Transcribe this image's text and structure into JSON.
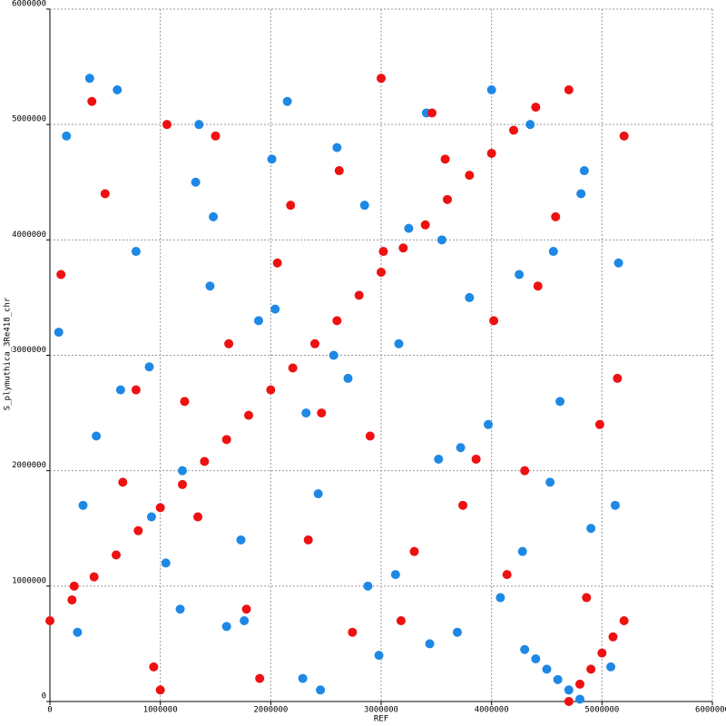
{
  "chart_data": {
    "type": "scatter",
    "xlabel": "REF",
    "ylabel": "S_plymuthica_3Re418_chr",
    "xlim": [
      0,
      6000000
    ],
    "ylim": [
      0,
      6000000
    ],
    "xticks": [
      0,
      1000000,
      2000000,
      3000000,
      4000000,
      5000000,
      6000000
    ],
    "yticks": [
      0,
      1000000,
      2000000,
      3000000,
      4000000,
      5000000,
      6000000
    ],
    "grid": true,
    "series": [
      {
        "color": "#1e88e5",
        "x": [
          4300000,
          4400000,
          4500000,
          4600000,
          4700000,
          4800000,
          150000,
          420000,
          780000,
          1050000,
          1320000,
          1600000,
          1890000,
          2150000,
          2430000,
          2700000,
          2980000,
          3250000,
          3520000,
          3800000,
          4080000,
          4350000,
          4620000,
          4900000,
          5150000,
          300000,
          610000,
          900000,
          1180000,
          1450000,
          1730000,
          2010000,
          2290000,
          2570000,
          2850000,
          3130000,
          3410000,
          3690000,
          3970000,
          4250000,
          4530000,
          4810000,
          5080000,
          80000,
          360000,
          640000,
          920000,
          1200000,
          1480000,
          1760000,
          2040000,
          2320000,
          2600000,
          2880000,
          3160000,
          3440000,
          3720000,
          4000000,
          4280000,
          4560000,
          4840000,
          5120000,
          250000,
          1350000,
          2450000,
          3550000
        ],
        "values": [
          450000,
          370000,
          280000,
          190000,
          100000,
          20000,
          4900000,
          2300000,
          3900000,
          1200000,
          4500000,
          650000,
          3300000,
          5200000,
          1800000,
          2800000,
          400000,
          4100000,
          2100000,
          3500000,
          900000,
          5000000,
          2600000,
          1500000,
          3800000,
          1700000,
          5300000,
          2900000,
          800000,
          3600000,
          1400000,
          4700000,
          200000,
          3000000,
          4300000,
          1100000,
          5100000,
          600000,
          2400000,
          3700000,
          1900000,
          4400000,
          300000,
          3200000,
          5400000,
          2700000,
          1600000,
          2000000,
          4200000,
          700000,
          3400000,
          2500000,
          4800000,
          1000000,
          3100000,
          500000,
          2200000,
          5300000,
          1300000,
          3900000,
          4600000,
          1700000,
          600000,
          5000000,
          100000,
          4000000
        ]
      },
      {
        "color": "#ee1111",
        "x": [
          0,
          200000,
          400000,
          600000,
          800000,
          1000000,
          1200000,
          1400000,
          1600000,
          1800000,
          2000000,
          2200000,
          2400000,
          2600000,
          2800000,
          3000000,
          3200000,
          3400000,
          3600000,
          3800000,
          4000000,
          4200000,
          4400000,
          4700000,
          4800000,
          4900000,
          5000000,
          5100000,
          5200000,
          100000,
          380000,
          660000,
          940000,
          1220000,
          1500000,
          1780000,
          2060000,
          2340000,
          2620000,
          2900000,
          3180000,
          3460000,
          3740000,
          4020000,
          4300000,
          4580000,
          4860000,
          5140000,
          220000,
          500000,
          780000,
          1060000,
          1340000,
          1620000,
          1900000,
          2180000,
          2460000,
          2740000,
          3020000,
          3300000,
          3580000,
          3860000,
          4140000,
          4420000,
          4700000,
          4980000,
          5200000,
          1000000,
          3000000
        ],
        "values": [
          700000,
          880000,
          1080000,
          1270000,
          1480000,
          1680000,
          1880000,
          2080000,
          2270000,
          2480000,
          2700000,
          2890000,
          3100000,
          3300000,
          3520000,
          3720000,
          3930000,
          4130000,
          4350000,
          4560000,
          4750000,
          4950000,
          5150000,
          0,
          150000,
          280000,
          420000,
          560000,
          700000,
          3700000,
          5200000,
          1900000,
          300000,
          2600000,
          4900000,
          800000,
          3800000,
          1400000,
          4600000,
          2300000,
          700000,
          5100000,
          1700000,
          3300000,
          2000000,
          4200000,
          900000,
          2800000,
          1000000,
          4400000,
          2700000,
          5000000,
          1600000,
          3100000,
          200000,
          4300000,
          2500000,
          600000,
          3900000,
          1300000,
          4700000,
          2100000,
          1100000,
          3600000,
          5300000,
          2400000,
          4900000,
          100000,
          5400000
        ]
      }
    ]
  }
}
